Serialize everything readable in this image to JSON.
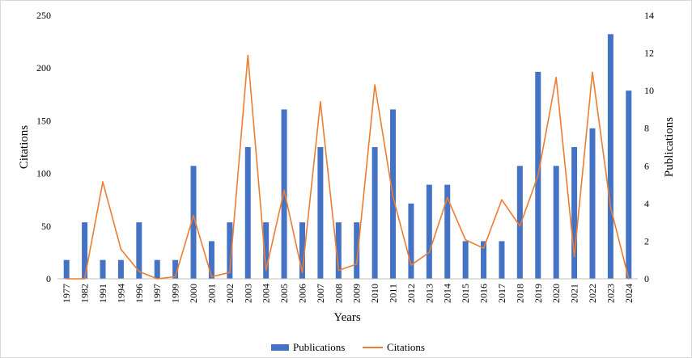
{
  "chart_data": {
    "type": "bar",
    "categories": [
      "1977",
      "1982",
      "1991",
      "1994",
      "1996",
      "1997",
      "1999",
      "2000",
      "2001",
      "2002",
      "2003",
      "2004",
      "2005",
      "2006",
      "2007",
      "2008",
      "2009",
      "2010",
      "2011",
      "2012",
      "2013",
      "2014",
      "2015",
      "2016",
      "2017",
      "2018",
      "2019",
      "2020",
      "2021",
      "2022",
      "2023",
      "2024"
    ],
    "series": [
      {
        "name": "Publications",
        "chart_type": "bar",
        "axis": "right",
        "color": "#4472C4",
        "values": [
          1,
          3,
          1,
          1,
          3,
          1,
          1,
          6,
          2,
          3,
          7,
          3,
          9,
          3,
          7,
          3,
          3,
          7,
          9,
          4,
          5,
          5,
          2,
          2,
          2,
          6,
          11,
          6,
          7,
          8,
          13,
          10
        ]
      },
      {
        "name": "Citations",
        "chart_type": "line",
        "axis": "left",
        "color": "#ED7D31",
        "values": [
          0,
          0,
          92,
          28,
          7,
          0,
          2,
          60,
          2,
          6,
          212,
          8,
          84,
          6,
          168,
          8,
          14,
          184,
          78,
          13,
          25,
          77,
          37,
          29,
          75,
          50,
          98,
          191,
          21,
          196,
          68,
          0
        ]
      }
    ],
    "xlabel": "Years",
    "ylabel": "Citations",
    "y2label": "Publications",
    "ylim": [
      0,
      250
    ],
    "y2lim": [
      0,
      14
    ],
    "yticks": [
      0,
      50,
      100,
      150,
      200,
      250
    ],
    "y2ticks": [
      0,
      2,
      4,
      6,
      8,
      10,
      12,
      14
    ],
    "grid": false,
    "legend_position": "bottom"
  }
}
